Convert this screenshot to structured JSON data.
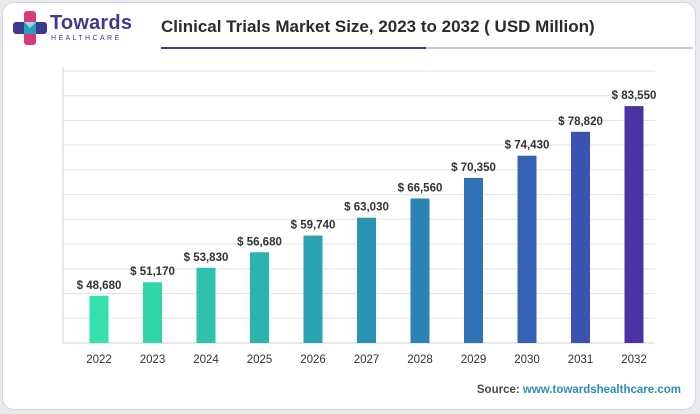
{
  "brand": {
    "name": "Towards",
    "sub": "HEALTHCARE",
    "colors": {
      "primary": "#3f3a91",
      "accent": "#d63a7a",
      "teal": "#2aa0b6"
    }
  },
  "chart_data": {
    "type": "bar",
    "title": "Clinical Trials Market Size, 2023 to 2032 ( USD Million)",
    "xlabel": "",
    "ylabel": "",
    "ylim": [
      40000,
      90000
    ],
    "grid": true,
    "categories": [
      "2022",
      "2023",
      "2024",
      "2025",
      "2026",
      "2027",
      "2028",
      "2029",
      "2030",
      "2031",
      "2032"
    ],
    "values": [
      48680,
      51170,
      53830,
      56680,
      59740,
      63030,
      66560,
      70350,
      74430,
      78820,
      83550
    ],
    "data_labels": [
      "$ 48,680",
      "$ 51,170",
      "$ 53,830",
      "$ 56,680",
      "$ 59,740",
      "$ 63,030",
      "$ 66,560",
      "$ 70,350",
      "$ 74,430",
      "$ 78,820",
      "$ 83,550"
    ],
    "bar_colors": [
      "#34e1ad",
      "#2fd4a8",
      "#2ec2ad",
      "#2cb3ae",
      "#2ba2b0",
      "#2a93b3",
      "#2b82b4",
      "#2f72b6",
      "#3462b5",
      "#3a52b2",
      "#4b33a6"
    ]
  },
  "source": {
    "label": "Source:",
    "url": "www.towardshealthcare.com"
  }
}
